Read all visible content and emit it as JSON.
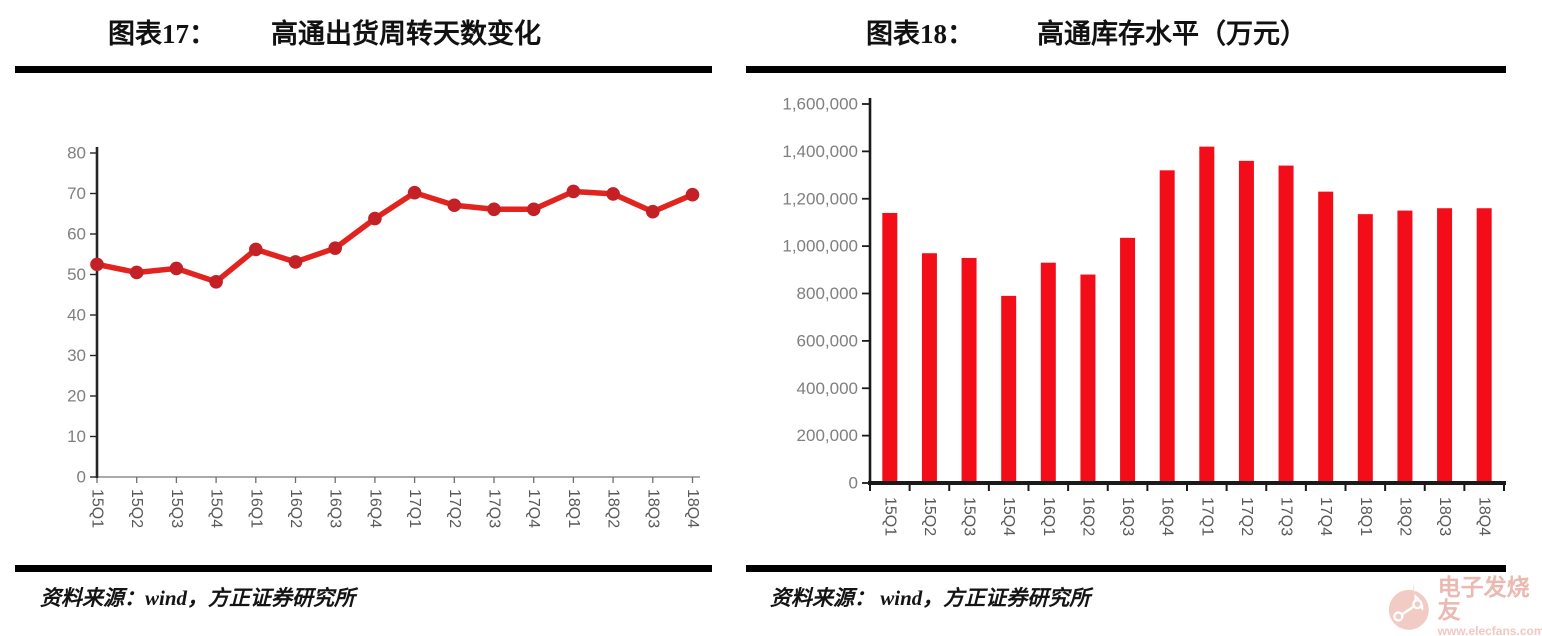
{
  "figures": [
    {
      "label": "图表17：",
      "title": "高通出货周转天数变化",
      "source": "资料来源：wind，方正证券研究所"
    },
    {
      "label": "图表18：",
      "title": "高通库存水平（万元）",
      "source": "资料来源： wind，方正证券研究所"
    }
  ],
  "chart_data": [
    {
      "type": "line",
      "title": "高通出货周转天数变化",
      "categories": [
        "15Q1",
        "15Q2",
        "15Q3",
        "15Q4",
        "16Q1",
        "16Q2",
        "16Q3",
        "16Q4",
        "17Q1",
        "17Q2",
        "17Q3",
        "17Q4",
        "18Q1",
        "18Q2",
        "18Q3",
        "18Q4"
      ],
      "values": [
        52.5,
        50.5,
        51.5,
        48.2,
        56.2,
        53.1,
        56.5,
        63.8,
        70.2,
        67.1,
        66.1,
        66.1,
        70.5,
        69.9,
        65.5,
        69.7
      ],
      "xlabel": "",
      "ylabel": "",
      "ylim": [
        0,
        80
      ],
      "ytick_step": 10,
      "yticks": [
        "0",
        "10",
        "20",
        "30",
        "40",
        "50",
        "60",
        "70",
        "80"
      ],
      "grid": false,
      "legend": "none",
      "line_color": "#e2231e",
      "marker_color": "#c42127",
      "axis_color": "#262626",
      "xaxis_color": "#9e9e9e",
      "tick_label_color": "#7f7f7f",
      "xtick_label_color": "#595959"
    },
    {
      "type": "bar",
      "title": "高通库存水平（万元）",
      "categories": [
        "15Q1",
        "15Q2",
        "15Q3",
        "15Q4",
        "16Q1",
        "16Q2",
        "16Q3",
        "16Q4",
        "17Q1",
        "17Q2",
        "17Q3",
        "17Q4",
        "18Q1",
        "18Q2",
        "18Q3",
        "18Q4"
      ],
      "values": [
        1140000,
        970000,
        950000,
        790000,
        930000,
        880000,
        1035000,
        1320000,
        1420000,
        1360000,
        1340000,
        1230000,
        1135000,
        1150000,
        1160000,
        1160000
      ],
      "xlabel": "",
      "ylabel": "",
      "ylim": [
        0,
        1600000
      ],
      "ytick_step": 200000,
      "yticks": [
        "0",
        "200,000",
        "400,000",
        "600,000",
        "800,000",
        "1,000,000",
        "1,200,000",
        "1,400,000",
        "1,600,000"
      ],
      "grid": false,
      "legend": "none",
      "bar_color": "#f30d19",
      "axis_color": "#1a1a1a",
      "tick_label_color": "#7f7f7f",
      "xtick_label_color": "#595959"
    }
  ],
  "watermark": {
    "name": "电子发烧友",
    "url": "www.elecfans.com",
    "color": "#eab9b1"
  }
}
